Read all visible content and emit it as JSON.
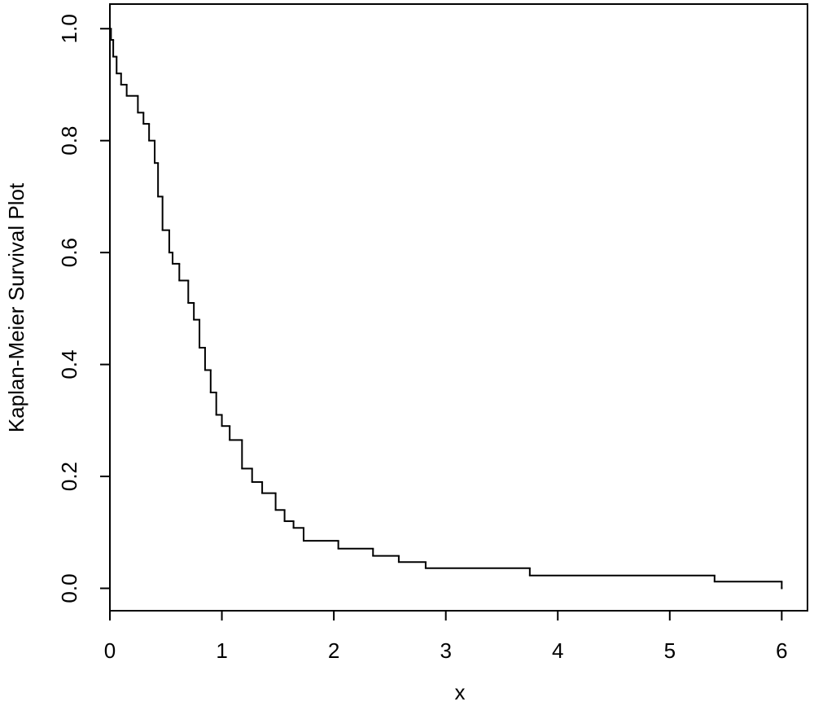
{
  "chart_data": {
    "type": "step",
    "xlabel": "x",
    "ylabel": "Kaplan-Meier Survival Plot",
    "x": [
      0,
      0.01,
      0.03,
      0.06,
      0.1,
      0.15,
      0.25,
      0.3,
      0.35,
      0.4,
      0.43,
      0.47,
      0.53,
      0.56,
      0.62,
      0.7,
      0.75,
      0.8,
      0.85,
      0.9,
      0.95,
      1.0,
      1.07,
      1.18,
      1.27,
      1.36,
      1.48,
      1.56,
      1.64,
      1.73,
      2.04,
      2.35,
      2.58,
      2.82,
      3.75,
      5.4,
      6.0
    ],
    "values": [
      1.0,
      0.98,
      0.95,
      0.92,
      0.9,
      0.88,
      0.85,
      0.83,
      0.8,
      0.76,
      0.7,
      0.64,
      0.6,
      0.58,
      0.55,
      0.51,
      0.48,
      0.43,
      0.39,
      0.35,
      0.31,
      0.29,
      0.265,
      0.214,
      0.19,
      0.17,
      0.14,
      0.12,
      0.108,
      0.085,
      0.071,
      0.058,
      0.047,
      0.036,
      0.023,
      0.012,
      0.0
    ],
    "color": "#000000",
    "xlim": [
      0,
      6.23
    ],
    "ylim": [
      -0.04,
      1.044
    ],
    "xticks": [
      0,
      1,
      2,
      3,
      4,
      5,
      6
    ],
    "yticks": [
      {
        "value": 0,
        "label": "0.0"
      },
      0.2,
      0.4,
      0.6,
      0.8,
      {
        "value": 1,
        "label": "1.0"
      }
    ],
    "grid": false
  }
}
